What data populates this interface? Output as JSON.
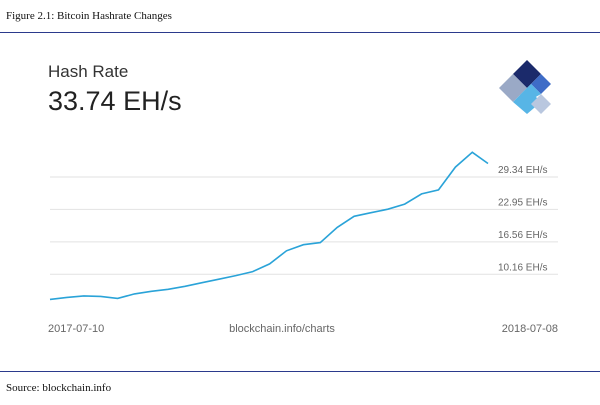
{
  "figure": {
    "caption": "Figure 2.1: Bitcoin Hashrate Changes",
    "source": "Source: blockchain.info",
    "rule_color": "#2b3a8c"
  },
  "card": {
    "title": "Hash Rate",
    "value": "33.74 EH/s",
    "logo": "blockchain-logo",
    "brand_colors": [
      "#1b2a6b",
      "#3e6cc7",
      "#57b5e6",
      "#9aa9c6"
    ]
  },
  "chart_data": {
    "type": "line",
    "title": "Hash Rate",
    "xlabel": "",
    "ylabel": "",
    "line_color": "#2aa3d8",
    "grid": true,
    "y_ticks": [
      {
        "label": "10.16 EH/s",
        "value": 10.16
      },
      {
        "label": "16.56 EH/s",
        "value": 16.56
      },
      {
        "label": "22.95 EH/s",
        "value": 22.95
      },
      {
        "label": "29.34 EH/s",
        "value": 29.34
      }
    ],
    "ylim": [
      4.5,
      39
    ],
    "x_labels": {
      "start": "2017-07-10",
      "center": "blockchain.info/charts",
      "end": "2018-07-08"
    },
    "x": [
      "2017-07-10",
      "2017-07-24",
      "2017-08-07",
      "2017-08-21",
      "2017-09-04",
      "2017-09-18",
      "2017-10-02",
      "2017-10-16",
      "2017-10-30",
      "2017-11-13",
      "2017-11-27",
      "2017-12-11",
      "2017-12-25",
      "2018-01-08",
      "2018-01-22",
      "2018-02-05",
      "2018-02-19",
      "2018-03-05",
      "2018-03-19",
      "2018-04-02",
      "2018-04-16",
      "2018-04-30",
      "2018-05-14",
      "2018-05-28",
      "2018-06-11",
      "2018-06-25",
      "2018-07-08"
    ],
    "values": [
      5.2,
      5.6,
      5.9,
      5.8,
      5.4,
      6.3,
      6.8,
      7.2,
      7.8,
      8.5,
      9.2,
      9.9,
      10.7,
      12.2,
      14.8,
      16.0,
      16.4,
      19.4,
      21.6,
      22.3,
      23.0,
      24.0,
      26.0,
      26.8,
      31.3,
      34.2,
      32.0
    ]
  }
}
